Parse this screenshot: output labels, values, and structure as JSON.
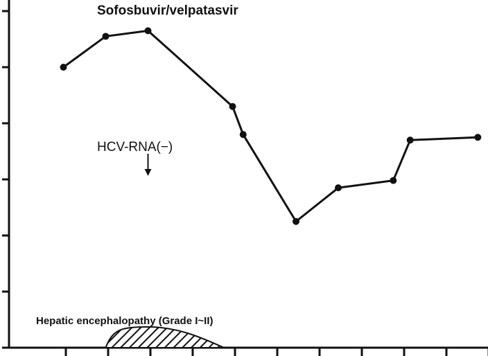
{
  "chart_data": {
    "type": "line",
    "title": "",
    "xlabel": "",
    "ylabel": "",
    "grid": false,
    "x_tick_count": 11,
    "y_tick_count": 7,
    "series": [
      {
        "values": [
          {
            "x": 1.5,
            "y": 5.0
          },
          {
            "x": 2.5,
            "y": 5.55
          },
          {
            "x": 3.5,
            "y": 5.65
          },
          {
            "x": 5.5,
            "y": 4.3
          },
          {
            "x": 5.75,
            "y": 3.8
          },
          {
            "x": 7.0,
            "y": 2.25
          },
          {
            "x": 8.0,
            "y": 2.85
          },
          {
            "x": 9.3,
            "y": 2.98
          },
          {
            "x": 9.7,
            "y": 3.7
          },
          {
            "x": 11.3,
            "y": 3.75
          }
        ]
      }
    ],
    "bands": [
      {
        "label": "Sofosbuvir/velpatasvir"
      },
      {
        "label": "Hepatic encephalopathy (Grade I~II)",
        "start_x": 2.5,
        "peak_x": 3.5,
        "end_x": 5.3
      }
    ],
    "annotations": [
      {
        "text": "HCV-RNA(−)",
        "x": 3.5
      }
    ],
    "colors": {
      "line": "#111111",
      "hatch": "#111111",
      "background": "#ffffff"
    }
  }
}
